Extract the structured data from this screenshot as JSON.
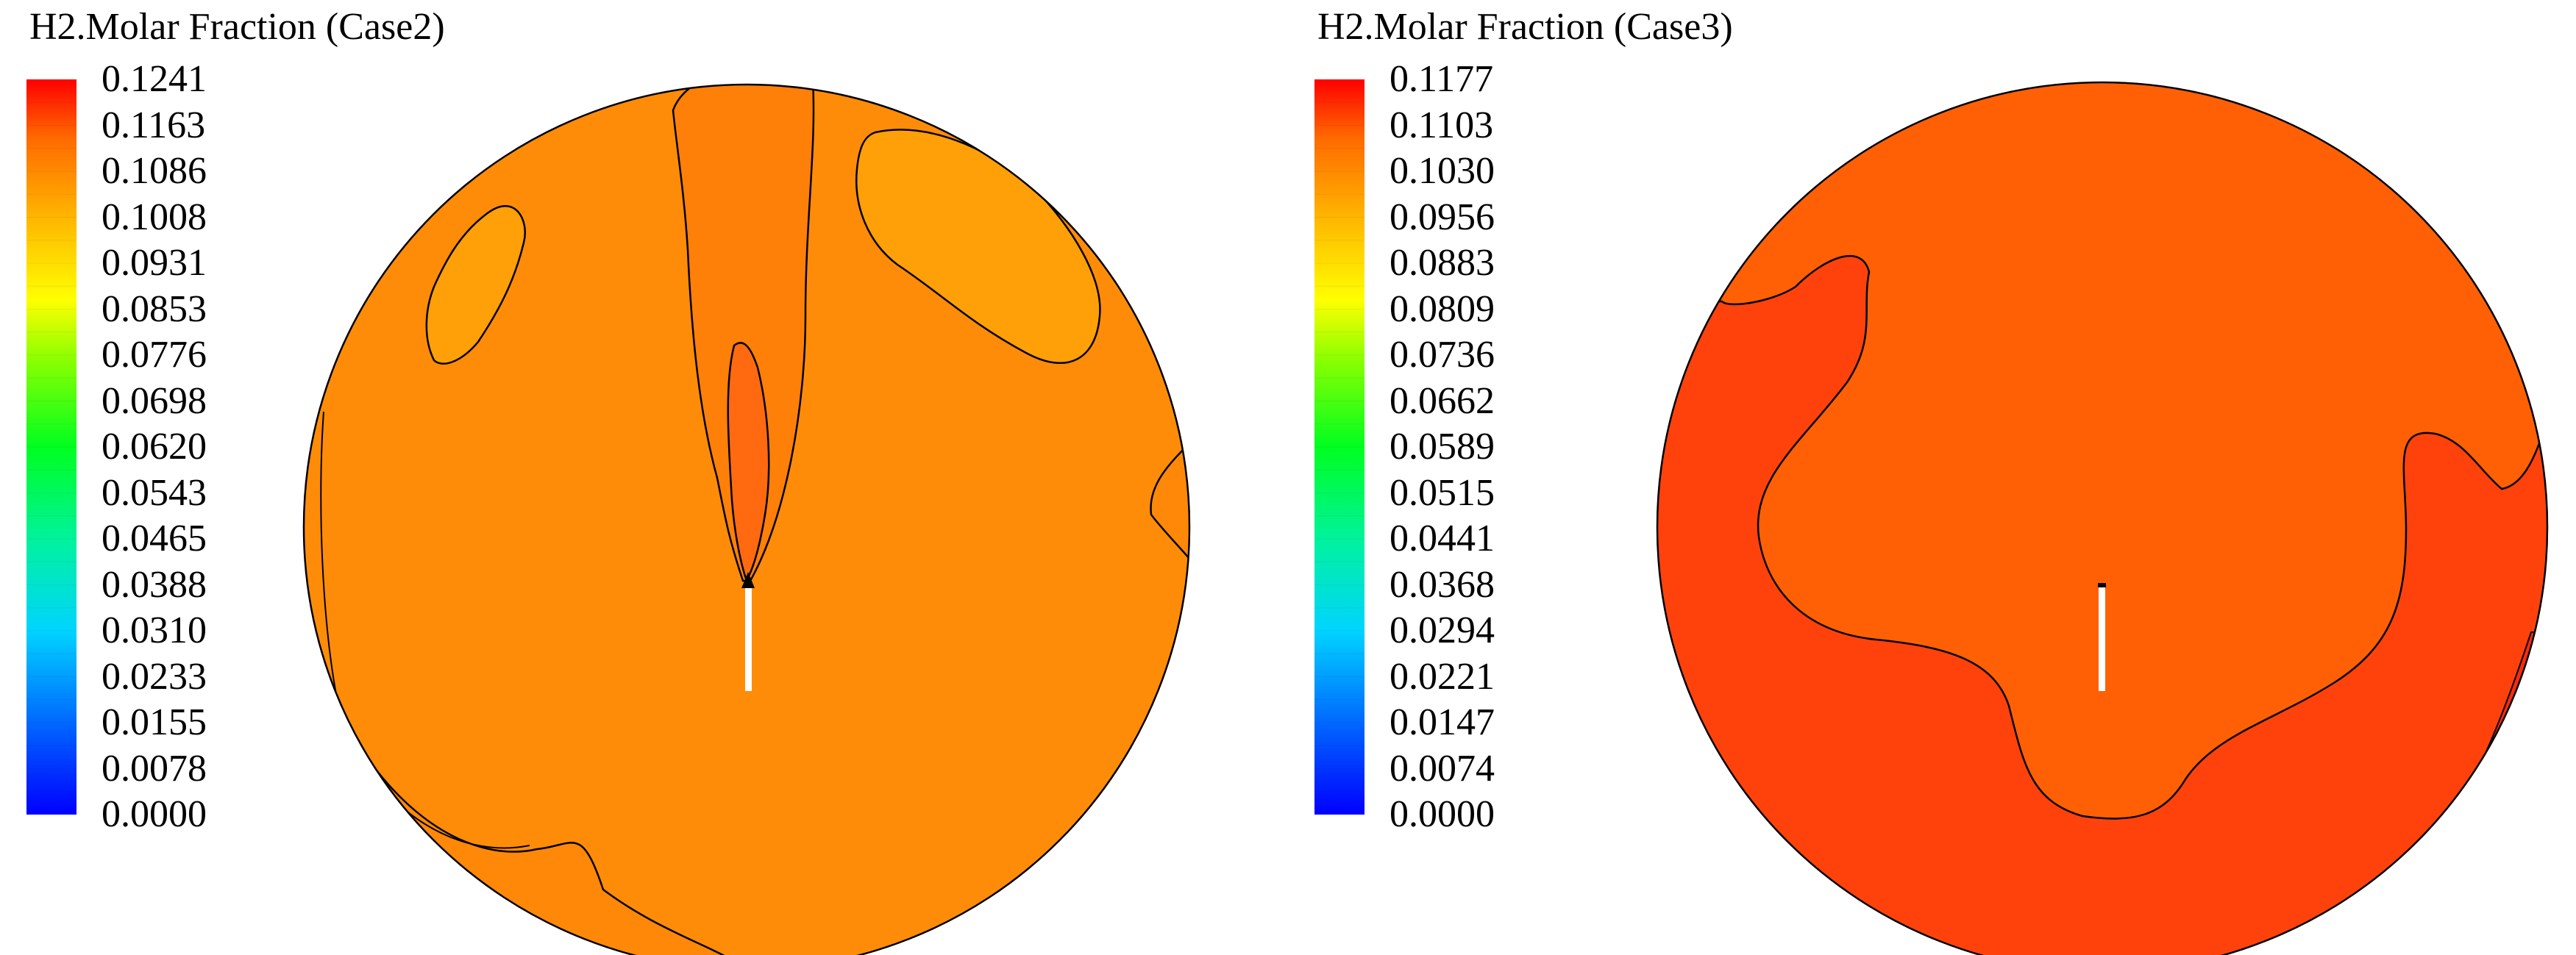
{
  "chart_data": [
    {
      "type": "heatmap",
      "title": "H2.Molar Fraction (Case2)",
      "colorbar": {
        "ticks": [
          "0.1241",
          "0.1163",
          "0.1086",
          "0.1008",
          "0.0931",
          "0.0853",
          "0.0776",
          "0.0698",
          "0.0620",
          "0.0543",
          "0.0465",
          "0.0388",
          "0.0310",
          "0.0233",
          "0.0155",
          "0.0078",
          "0.0000"
        ],
        "min": 0.0,
        "max": 0.1241,
        "colormap": "rainbow (blue-cyan-green-yellow-orange-red)"
      },
      "regions": [
        {
          "level": 0.1086,
          "color": "#ff8c08"
        },
        {
          "level": 0.1008,
          "color": "#ffa008"
        },
        {
          "level": 0.1163,
          "color": "#ff6a10"
        }
      ]
    },
    {
      "type": "heatmap",
      "title": "H2.Molar Fraction (Case3)",
      "colorbar": {
        "ticks": [
          "0.1177",
          "0.1103",
          "0.1030",
          "0.0956",
          "0.0883",
          "0.0809",
          "0.0736",
          "0.0662",
          "0.0589",
          "0.0515",
          "0.0441",
          "0.0368",
          "0.0294",
          "0.0221",
          "0.0147",
          "0.0074",
          "0.0000"
        ],
        "min": 0.0,
        "max": 0.1177,
        "colormap": "rainbow (blue-cyan-green-yellow-orange-red)"
      },
      "regions": [
        {
          "level": 0.1103,
          "color": "#ff6006"
        },
        {
          "level": 0.1177,
          "color": "#ff420c"
        },
        {
          "level": 0.1177,
          "color": "#ff2a0c"
        }
      ]
    }
  ],
  "colors": {
    "outline": "#000000",
    "nozzle": "#ffffff"
  }
}
